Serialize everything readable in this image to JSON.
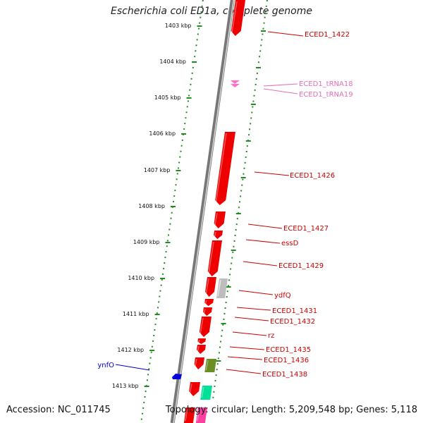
{
  "title": "Escherichia coli ED1a, complete genome",
  "accession_text": "Accession: NC_011745",
  "summary_text": "Topology: circular; Length: 5,209,548 bp; Genes: 5,118",
  "colors": {
    "ruler": "#228b22",
    "gene_label": "#cc0000",
    "trna_label": "#e36fb5",
    "other_label": "#0000cc",
    "backbone": "#8c8c8c"
  },
  "ruler_ticks": [
    {
      "label": "1403 kbp"
    },
    {
      "label": "1404 kbp"
    },
    {
      "label": "1405 kbp"
    },
    {
      "label": "1406 kbp"
    },
    {
      "label": "1407 kbp"
    },
    {
      "label": "1408 kbp"
    },
    {
      "label": "1409 kbp"
    },
    {
      "label": "1410 kbp"
    },
    {
      "label": "1411 kbp"
    },
    {
      "label": "1412 kbp"
    },
    {
      "label": "1413 kbp"
    }
  ],
  "labels": [
    {
      "text": "ECED1_1422",
      "kind": "gene"
    },
    {
      "text": "ECED1_tRNA18",
      "kind": "trna"
    },
    {
      "text": "ECED1_tRNA19",
      "kind": "trna"
    },
    {
      "text": "ECED1_1426",
      "kind": "gene"
    },
    {
      "text": "ECED1_1427",
      "kind": "gene"
    },
    {
      "text": "essD",
      "kind": "gene"
    },
    {
      "text": "ECED1_1429",
      "kind": "gene"
    },
    {
      "text": "ydfQ",
      "kind": "gene"
    },
    {
      "text": "ECED1_1431",
      "kind": "gene"
    },
    {
      "text": "ECED1_1432",
      "kind": "gene"
    },
    {
      "text": "rz",
      "kind": "gene"
    },
    {
      "text": "ECED1_1435",
      "kind": "gene"
    },
    {
      "text": "ECED1_1436",
      "kind": "gene"
    },
    {
      "text": "ECED1_1438",
      "kind": "gene"
    },
    {
      "text": "ynfO",
      "kind": "other"
    }
  ]
}
